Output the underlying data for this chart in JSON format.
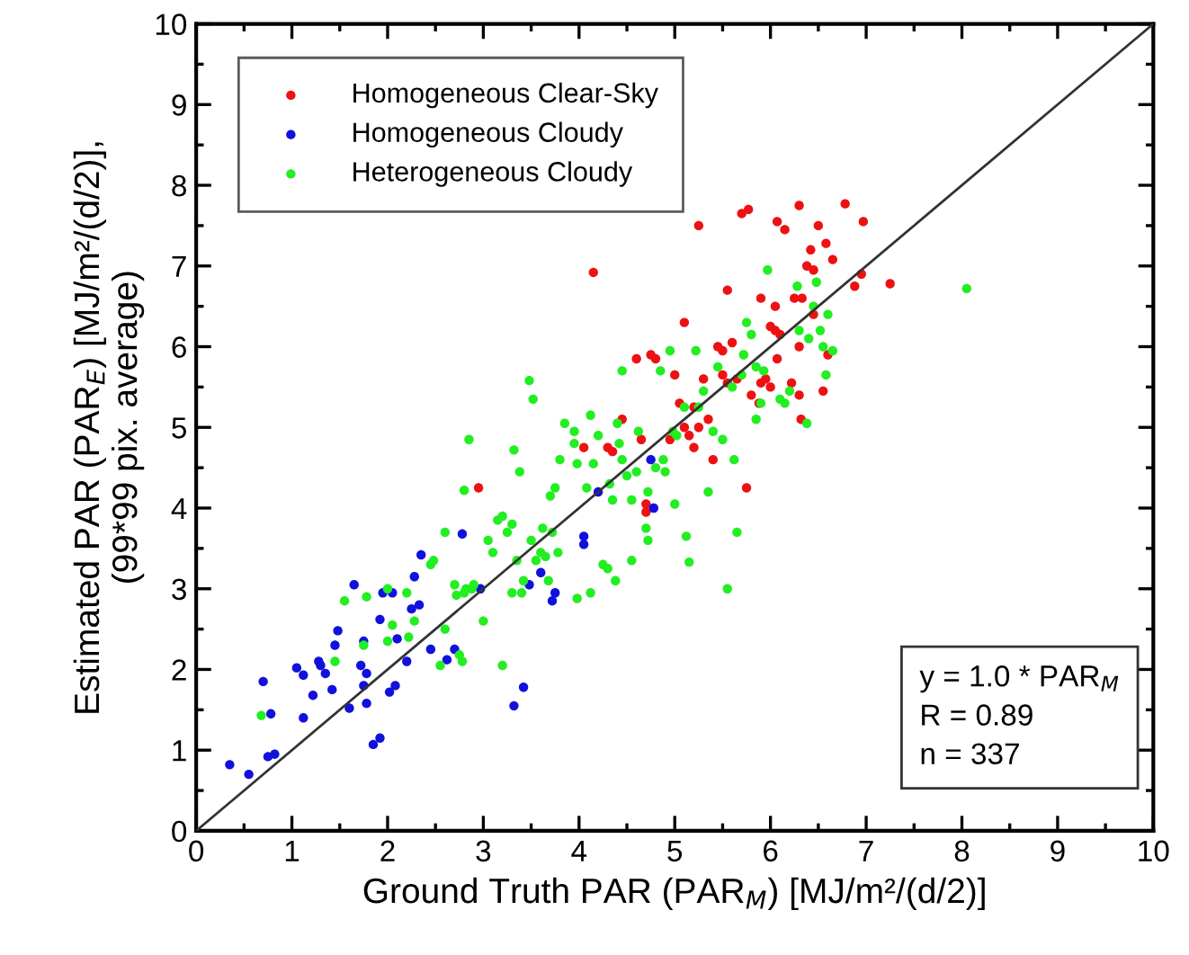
{
  "chart_data": {
    "type": "scatter",
    "xlabel": "Ground Truth PAR (PAR$_{M}$) [MJ/m²/(d/2)]",
    "ylabel": "Estimated PAR (PAR$_{E}$) [MJ/m²/(d/2)],\n(99*99 pix. average)",
    "annotations": [
      "y = 1.0 * PAR$_{M}$",
      "R = 0.89",
      "n = 337"
    ],
    "xlim": [
      0,
      10
    ],
    "ylim": [
      0,
      10
    ],
    "xticks": [
      0,
      {
        "value": 0.5,
        "label": null
      },
      1,
      {
        "value": 1.5,
        "label": null
      },
      2,
      {
        "value": 2.5,
        "label": null
      },
      3,
      {
        "value": 3.5,
        "label": null
      },
      4,
      {
        "value": 4.5,
        "label": null
      },
      5,
      {
        "value": 5.5,
        "label": null
      },
      6,
      {
        "value": 6.5,
        "label": null
      },
      7,
      {
        "value": 7.5,
        "label": null
      },
      8,
      {
        "value": 8.5,
        "label": null
      },
      9,
      {
        "value": 9.5,
        "label": null
      },
      10
    ],
    "yticks": [
      0,
      {
        "value": 0.5,
        "label": null
      },
      1,
      {
        "value": 1.5,
        "label": null
      },
      2,
      {
        "value": 2.5,
        "label": null
      },
      3,
      {
        "value": 3.5,
        "label": null
      },
      4,
      {
        "value": 4.5,
        "label": null
      },
      5,
      {
        "value": 5.5,
        "label": null
      },
      6,
      {
        "value": 6.5,
        "label": null
      },
      7,
      {
        "value": 7.5,
        "label": null
      },
      8,
      {
        "value": 8.5,
        "label": null
      },
      9,
      {
        "value": 9.5,
        "label": null
      },
      10
    ],
    "grid": false,
    "legend": "top left",
    "marker": "circle",
    "series": [
      {
        "name": "Homogeneous Clear-Sky",
        "color": "#ee1111",
        "x": [
          4.15,
          5.25,
          5.7,
          5.77,
          6.3,
          6.78,
          6.07,
          6.15,
          6.5,
          6.97,
          6.42,
          6.58,
          6.65,
          6.38,
          6.45,
          5.55,
          5.9,
          6.05,
          6.25,
          6.33,
          6.95,
          6.88,
          7.25,
          5.1,
          6.0,
          6.05,
          6.1,
          6.45,
          5.6,
          5.45,
          5.5,
          6.3,
          6.6,
          6.07,
          4.6,
          4.75,
          4.8,
          5.0,
          5.3,
          5.5,
          5.55,
          5.65,
          5.8,
          5.88,
          5.9,
          6.0,
          5.95,
          6.22,
          6.3,
          6.55,
          6.32,
          4.45,
          5.05,
          5.2,
          5.1,
          5.25,
          5.15,
          5.35,
          4.95,
          5.2,
          4.65,
          4.05,
          4.3,
          4.35,
          5.4,
          5.75,
          2.95,
          4.7,
          4.7
        ],
        "values": [
          6.92,
          7.5,
          7.65,
          7.7,
          7.75,
          7.77,
          7.55,
          7.45,
          7.5,
          7.55,
          7.2,
          7.28,
          7.08,
          7.0,
          6.95,
          6.7,
          6.6,
          6.5,
          6.6,
          6.6,
          6.9,
          6.75,
          6.78,
          6.3,
          6.25,
          6.2,
          6.15,
          6.4,
          6.05,
          6.0,
          5.95,
          6.0,
          5.9,
          5.85,
          5.85,
          5.9,
          5.85,
          5.65,
          5.6,
          5.65,
          5.55,
          5.6,
          5.4,
          5.3,
          5.55,
          5.5,
          5.6,
          5.55,
          5.4,
          5.45,
          5.1,
          5.1,
          5.3,
          5.25,
          5.0,
          5.0,
          4.9,
          5.1,
          4.85,
          4.75,
          4.85,
          4.75,
          4.75,
          4.7,
          4.6,
          4.25,
          4.25,
          4.05,
          3.95
        ]
      },
      {
        "name": "Homogeneous Cloudy",
        "color": "#1111dd",
        "x": [
          0.35,
          0.55,
          0.75,
          0.82,
          0.7,
          0.78,
          1.05,
          1.12,
          1.22,
          1.12,
          1.28,
          1.3,
          1.35,
          1.42,
          1.45,
          1.48,
          1.6,
          1.65,
          1.72,
          1.75,
          1.78,
          1.75,
          1.78,
          1.85,
          1.92,
          1.92,
          1.95,
          2.05,
          2.02,
          2.08,
          2.1,
          2.2,
          2.25,
          2.28,
          2.33,
          2.35,
          2.45,
          2.62,
          2.7,
          2.78,
          2.97,
          3.32,
          3.42,
          3.48,
          3.6,
          3.72,
          3.75,
          4.05,
          4.05,
          4.2,
          4.75,
          4.78
        ],
        "values": [
          0.82,
          0.7,
          0.92,
          0.95,
          1.85,
          1.45,
          2.02,
          1.93,
          1.68,
          1.4,
          2.1,
          2.05,
          1.95,
          1.75,
          2.3,
          2.48,
          1.52,
          3.05,
          2.05,
          1.8,
          1.95,
          2.35,
          1.58,
          1.07,
          1.15,
          2.62,
          2.95,
          2.95,
          1.72,
          1.8,
          2.38,
          2.1,
          2.75,
          3.15,
          2.8,
          3.42,
          2.25,
          2.12,
          2.25,
          3.68,
          3.0,
          1.55,
          1.78,
          3.05,
          3.2,
          2.85,
          2.95,
          3.65,
          3.55,
          4.2,
          4.6,
          4.0
        ]
      },
      {
        "name": "Heterogeneous Cloudy",
        "color": "#22ee22",
        "x": [
          0.68,
          1.45,
          1.55,
          1.75,
          1.78,
          2.0,
          2.05,
          2.0,
          2.22,
          2.28,
          2.2,
          2.45,
          2.48,
          2.55,
          2.6,
          2.6,
          2.7,
          2.72,
          2.75,
          2.78,
          2.8,
          2.82,
          2.85,
          2.8,
          2.9,
          2.88,
          3.0,
          3.05,
          3.1,
          3.15,
          3.2,
          3.25,
          3.2,
          3.3,
          3.3,
          3.35,
          3.32,
          3.38,
          3.42,
          3.4,
          3.48,
          3.52,
          3.5,
          3.55,
          3.6,
          3.62,
          3.65,
          3.68,
          3.7,
          3.72,
          3.75,
          3.78,
          3.8,
          3.85,
          3.95,
          3.95,
          3.98,
          3.98,
          4.08,
          4.12,
          4.15,
          4.12,
          4.2,
          4.25,
          4.3,
          4.32,
          4.35,
          4.38,
          4.4,
          4.42,
          4.45,
          4.45,
          4.5,
          4.55,
          4.55,
          4.6,
          4.62,
          4.7,
          4.72,
          4.72,
          4.8,
          4.85,
          4.88,
          4.9,
          4.95,
          4.98,
          5.0,
          5.02,
          5.1,
          5.12,
          5.15,
          5.22,
          5.25,
          5.3,
          5.35,
          5.4,
          5.45,
          5.55,
          5.5,
          5.6,
          5.62,
          5.65,
          5.7,
          5.72,
          5.75,
          5.8,
          5.85,
          5.85,
          5.9,
          5.93,
          5.97,
          6.1,
          6.15,
          6.2,
          6.28,
          6.3,
          6.38,
          6.4,
          6.45,
          6.48,
          6.52,
          6.55,
          6.58,
          6.6,
          6.65,
          8.05
        ],
        "values": [
          1.43,
          2.1,
          2.85,
          2.3,
          2.9,
          3.0,
          2.55,
          2.35,
          2.4,
          2.6,
          2.95,
          3.3,
          3.35,
          2.05,
          2.5,
          3.7,
          3.05,
          2.92,
          2.18,
          2.1,
          2.95,
          3.0,
          4.85,
          4.22,
          3.05,
          3.0,
          2.6,
          3.6,
          3.45,
          3.85,
          3.9,
          3.7,
          2.05,
          2.95,
          3.8,
          3.35,
          4.72,
          4.45,
          3.1,
          2.95,
          5.58,
          5.35,
          3.6,
          3.35,
          3.45,
          3.75,
          3.4,
          3.1,
          4.15,
          3.7,
          4.25,
          3.45,
          4.6,
          5.05,
          4.95,
          4.8,
          4.55,
          2.88,
          4.25,
          2.95,
          4.55,
          5.15,
          4.9,
          3.3,
          3.25,
          4.3,
          4.1,
          3.1,
          5.05,
          4.8,
          4.6,
          5.7,
          4.4,
          3.35,
          4.1,
          4.45,
          4.95,
          3.75,
          4.2,
          3.6,
          4.5,
          5.7,
          4.6,
          4.45,
          5.95,
          4.95,
          4.05,
          4.9,
          5.25,
          3.65,
          3.33,
          5.95,
          5.25,
          5.45,
          4.2,
          4.95,
          5.75,
          3.0,
          4.85,
          5.5,
          4.6,
          3.7,
          5.65,
          5.9,
          6.3,
          6.15,
          5.75,
          5.1,
          5.3,
          5.7,
          6.95,
          5.35,
          5.3,
          5.45,
          6.75,
          6.2,
          5.05,
          6.1,
          6.5,
          6.8,
          6.2,
          6.0,
          5.65,
          6.4,
          5.95,
          6.72
        ]
      },
      {
        "type": "line",
        "color": "#333333",
        "marker": "none",
        "x": [
          0,
          10
        ],
        "values": [
          0,
          10
        ]
      }
    ]
  }
}
